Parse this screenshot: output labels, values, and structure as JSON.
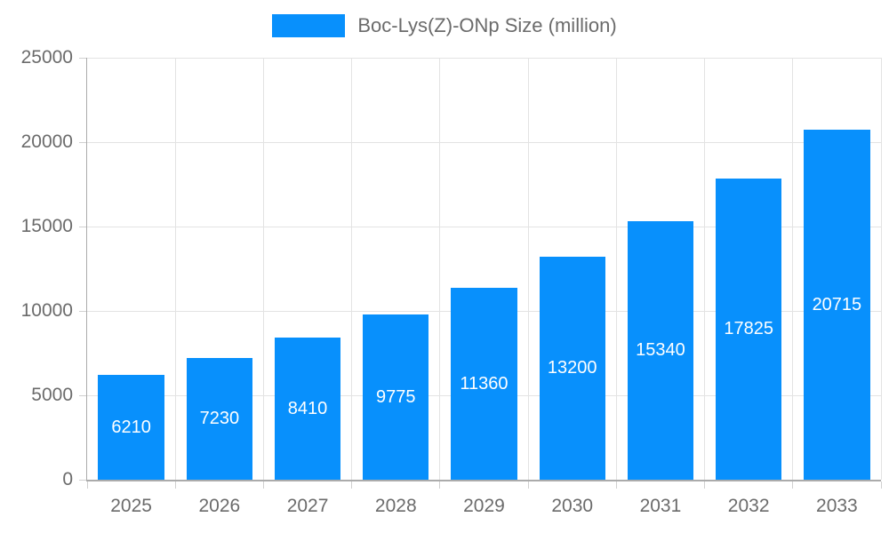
{
  "chart_data": {
    "type": "bar",
    "title": "",
    "legend": "Boc-Lys(Z)-ONp Size (million)",
    "legend_position": "top",
    "categories": [
      "2025",
      "2026",
      "2027",
      "2028",
      "2029",
      "2030",
      "2031",
      "2032",
      "2033"
    ],
    "values": [
      6210,
      7230,
      8410,
      9775,
      11360,
      13200,
      15340,
      17825,
      20715
    ],
    "bar_value_labels": [
      "6210",
      "7230",
      "8410",
      "9775",
      "11360",
      "13200",
      "15340",
      "17825",
      "20715"
    ],
    "xlabel": "",
    "ylabel": "",
    "ylim": [
      0,
      25000
    ],
    "ytick_labels": [
      "0",
      "5000",
      "10000",
      "15000",
      "20000",
      "25000"
    ],
    "grid": "on",
    "colors": {
      "bar": "#0890fc",
      "bar_label": "#ffffff",
      "grid": "#e3e3e3",
      "axis": "#ababab",
      "tick": "#d0d0d0",
      "text": "#6b6b6b"
    }
  }
}
